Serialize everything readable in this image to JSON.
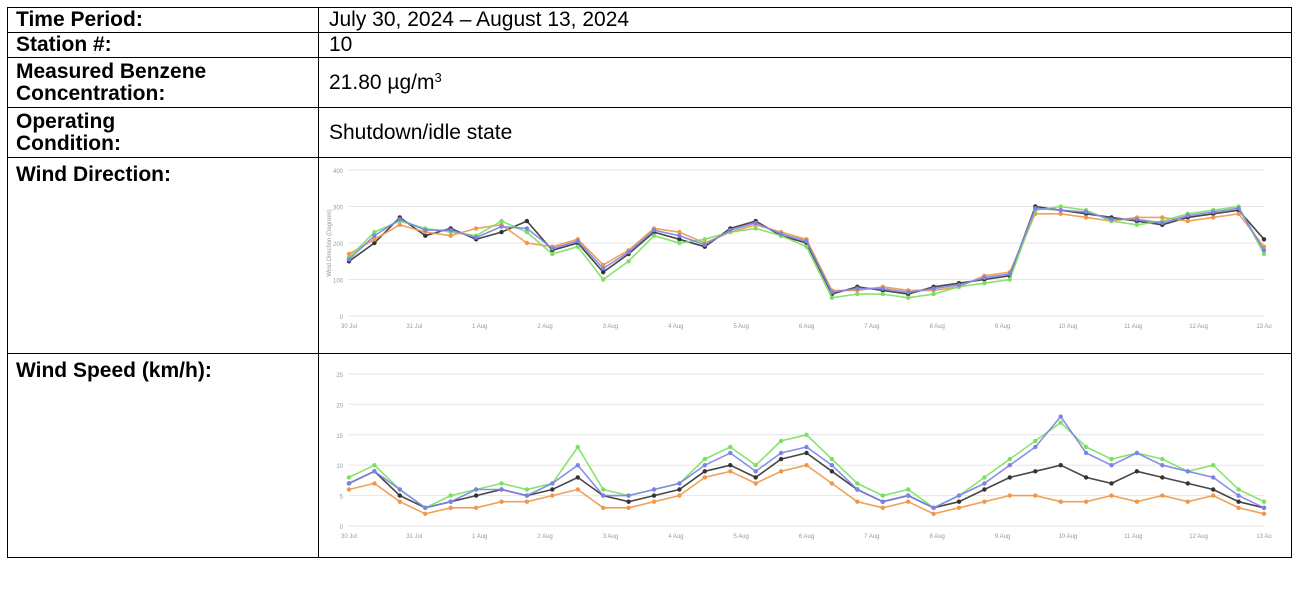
{
  "rows": {
    "time_period": {
      "label": "Time Period:",
      "value": "July 30, 2024 – August 13, 2024"
    },
    "station": {
      "label": "Station #:",
      "value": "10"
    },
    "benzene": {
      "label_line1": "Measured Benzene",
      "label_line2": "Concentration:",
      "value": "21.80 µg/m",
      "unit_sup": "3"
    },
    "operating": {
      "label_line1": "Operating",
      "label_line2": "Condition:",
      "value": "Shutdown/idle state"
    },
    "wind_direction": {
      "label": "Wind Direction:"
    },
    "wind_speed": {
      "label": "Wind Speed (km/h):"
    }
  },
  "chart_data": [
    {
      "type": "line",
      "ylabel": "Wind Direction (Degrees)",
      "ylim": [
        0,
        400
      ],
      "yticks": [
        "0",
        "100",
        "200",
        "300",
        "400"
      ],
      "xticks": [
        "30 Jul",
        "31 Jul",
        "1 Aug",
        "2 Aug",
        "3 Aug",
        "4 Aug",
        "5 Aug",
        "6 Aug",
        "7 Aug",
        "8 Aug",
        "9 Aug",
        "10 Aug",
        "11 Aug",
        "12 Aug",
        "13 Au"
      ],
      "grid": true,
      "series": [
        {
          "color": "#333333",
          "values": [
            150,
            200,
            270,
            220,
            240,
            210,
            230,
            260,
            180,
            200,
            120,
            170,
            230,
            210,
            190,
            240,
            260,
            220,
            200,
            60,
            80,
            70,
            60,
            80,
            90,
            100,
            110,
            300,
            290,
            280,
            270,
            260,
            250,
            270,
            280,
            290,
            210
          ]
        },
        {
          "color": "#f0974a",
          "values": [
            170,
            210,
            250,
            230,
            220,
            240,
            250,
            200,
            190,
            210,
            140,
            180,
            240,
            230,
            200,
            230,
            250,
            230,
            210,
            70,
            70,
            80,
            70,
            70,
            80,
            110,
            120,
            280,
            280,
            270,
            260,
            270,
            270,
            260,
            270,
            280,
            190
          ]
        },
        {
          "color": "#7be05f",
          "values": [
            160,
            230,
            260,
            240,
            230,
            220,
            260,
            230,
            170,
            190,
            100,
            150,
            220,
            200,
            210,
            230,
            240,
            220,
            190,
            50,
            60,
            60,
            50,
            60,
            80,
            90,
            100,
            290,
            300,
            290,
            260,
            250,
            260,
            280,
            290,
            300,
            170
          ]
        },
        {
          "color": "#7d83e6",
          "values": [
            155,
            220,
            265,
            235,
            235,
            215,
            245,
            240,
            185,
            205,
            130,
            175,
            235,
            220,
            195,
            235,
            255,
            225,
            205,
            65,
            75,
            75,
            65,
            75,
            85,
            105,
            115,
            295,
            290,
            285,
            265,
            265,
            255,
            275,
            285,
            295,
            180
          ]
        }
      ]
    },
    {
      "type": "line",
      "ylim": [
        0,
        25
      ],
      "yticks": [
        "0",
        "5",
        "10",
        "15",
        "20",
        "25"
      ],
      "xticks": [
        "30 Jul",
        "31 Jul",
        "1 Aug",
        "2 Aug",
        "3 Aug",
        "4 Aug",
        "5 Aug",
        "6 Aug",
        "7 Aug",
        "8 Aug",
        "9 Aug",
        "10 Aug",
        "11 Aug",
        "12 Aug",
        "13 Au"
      ],
      "grid": true,
      "series": [
        {
          "color": "#333333",
          "values": [
            7,
            9,
            5,
            3,
            4,
            5,
            6,
            5,
            6,
            8,
            5,
            4,
            5,
            6,
            9,
            10,
            8,
            11,
            12,
            9,
            6,
            4,
            5,
            3,
            4,
            6,
            8,
            9,
            10,
            8,
            7,
            9,
            8,
            7,
            6,
            4,
            3
          ]
        },
        {
          "color": "#f0974a",
          "values": [
            6,
            7,
            4,
            2,
            3,
            3,
            4,
            4,
            5,
            6,
            3,
            3,
            4,
            5,
            8,
            9,
            7,
            9,
            10,
            7,
            4,
            3,
            4,
            2,
            3,
            4,
            5,
            5,
            4,
            4,
            5,
            4,
            5,
            4,
            5,
            3,
            2
          ]
        },
        {
          "color": "#7be05f",
          "values": [
            8,
            10,
            6,
            3,
            5,
            6,
            7,
            6,
            7,
            13,
            6,
            5,
            6,
            7,
            11,
            13,
            10,
            14,
            15,
            11,
            7,
            5,
            6,
            3,
            5,
            8,
            11,
            14,
            17,
            13,
            11,
            12,
            11,
            9,
            10,
            6,
            4
          ]
        },
        {
          "color": "#7d83e6",
          "values": [
            7,
            9,
            6,
            3,
            4,
            6,
            6,
            5,
            7,
            10,
            5,
            5,
            6,
            7,
            10,
            12,
            9,
            12,
            13,
            10,
            6,
            4,
            5,
            3,
            5,
            7,
            10,
            13,
            18,
            12,
            10,
            12,
            10,
            9,
            8,
            5,
            3
          ]
        }
      ]
    }
  ]
}
